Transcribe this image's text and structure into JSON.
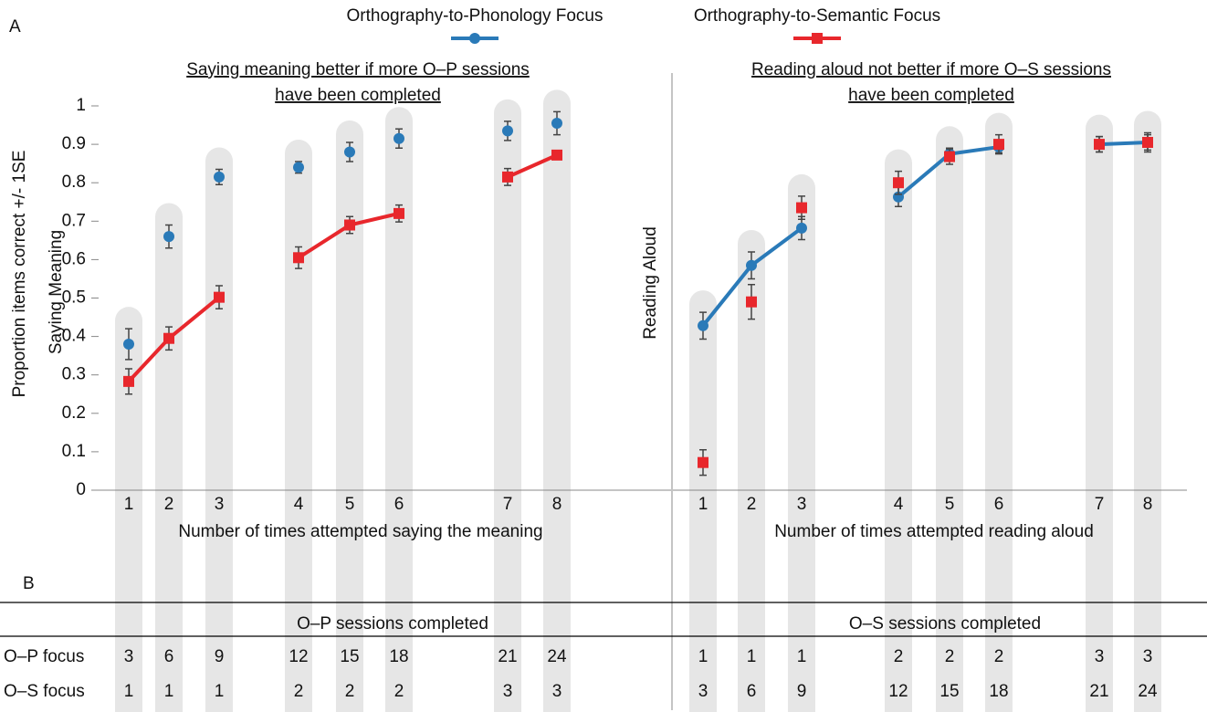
{
  "panel_labels": [
    "A",
    "B"
  ],
  "y_label": "Proportion items correct +/- 1SE",
  "chart_data": [
    {
      "type": "line",
      "title": [
        "Saying meaning better if more O–P sessions",
        "have been completed"
      ],
      "ylabel": "Saying Meaning",
      "xlabel": "Number of times attempted saying the meaning",
      "categories": [
        "1",
        "2",
        "3",
        "4",
        "5",
        "6",
        "7",
        "8"
      ],
      "ylim": [
        0,
        1
      ],
      "yticks": [
        0,
        0.1,
        0.2,
        0.3,
        0.4,
        0.5,
        0.6,
        0.7,
        0.8,
        0.9,
        1
      ],
      "series": [
        {
          "name": "Orthography-to-Phonology Focus",
          "color": "#2a7ab8",
          "marker": "circle",
          "connected": false,
          "values": [
            0.38,
            0.66,
            0.815,
            0.84,
            0.88,
            0.915,
            0.935,
            0.955
          ],
          "errors": [
            0.04,
            0.03,
            0.02,
            0.015,
            0.025,
            0.025,
            0.025,
            0.03
          ]
        },
        {
          "name": "Orthography-to-Semantic Focus",
          "color": "#e8272c",
          "marker": "square",
          "connected": true,
          "values": [
            0.283,
            0.395,
            0.502,
            0.605,
            0.69,
            0.72,
            0.815,
            0.872
          ],
          "errors": [
            0.033,
            0.03,
            0.03,
            0.028,
            0.022,
            0.022,
            0.022,
            0.01
          ]
        }
      ]
    },
    {
      "type": "line",
      "title": [
        "Reading aloud not better if more O–S sessions",
        "have been completed"
      ],
      "ylabel": "Reading Aloud",
      "xlabel": "Number of times attempted reading aloud",
      "categories": [
        "1",
        "2",
        "3",
        "4",
        "5",
        "6",
        "7",
        "8"
      ],
      "ylim": [
        0,
        1
      ],
      "series": [
        {
          "color": "#2a7ab8",
          "marker": "circle",
          "connected": true,
          "values": [
            0.428,
            0.585,
            0.682,
            0.763,
            0.875,
            0.893,
            0.9,
            0.905
          ],
          "errors": [
            0.035,
            0.035,
            0.03,
            0.025,
            0.015,
            0.015,
            0.02,
            0.025
          ]
        },
        {
          "color": "#e8272c",
          "marker": "square",
          "connected": false,
          "values": [
            0.072,
            0.49,
            0.735,
            0.8,
            0.868,
            0.9,
            0.9,
            0.905
          ],
          "errors": [
            0.033,
            0.045,
            0.03,
            0.03,
            0.02,
            0.025,
            0.02,
            0.02
          ]
        }
      ]
    }
  ],
  "table": {
    "headers": [
      "O–P sessions completed",
      "O–S sessions completed"
    ],
    "rows": [
      {
        "label": "O–P focus",
        "color": "#2a7ab8",
        "values": [
          [
            3,
            6,
            9,
            12,
            15,
            18,
            21,
            24
          ],
          [
            1,
            1,
            1,
            2,
            2,
            2,
            3,
            3
          ]
        ]
      },
      {
        "label": "O–S focus",
        "color": "#e8272c",
        "values": [
          [
            1,
            1,
            1,
            2,
            2,
            2,
            3,
            3
          ],
          [
            3,
            6,
            9,
            12,
            15,
            18,
            21,
            24
          ]
        ]
      }
    ]
  }
}
